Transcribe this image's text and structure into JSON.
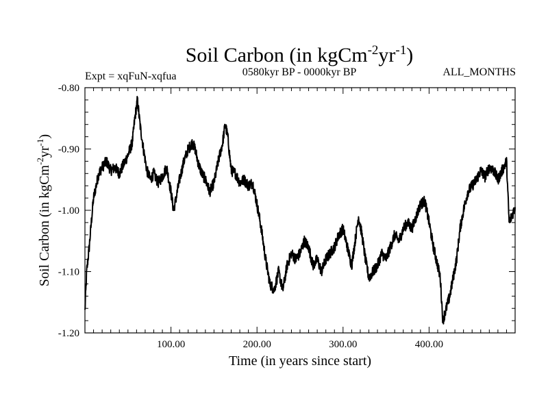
{
  "chart_data": {
    "type": "line",
    "title": "Soil Carbon (in kgCm",
    "title_sup1": "-2",
    "title_mid": "yr",
    "title_sup2": "-1",
    "title_end": ")",
    "subtitle_left": "Expt = xqFuN-xqfua",
    "subtitle_center": "0580kyr BP - 0000kyr BP",
    "subtitle_right": "ALL_MONTHS",
    "xlabel": "Time (in years since start)",
    "ylabel": "Soil Carbon (in kgCm",
    "ylabel_sup1": "-2",
    "ylabel_mid": "yr",
    "ylabel_sup2": "-1",
    "ylabel_end": ")",
    "xlim": [
      0,
      500
    ],
    "ylim": [
      -1.2,
      -0.8
    ],
    "x_ticks": [
      100,
      200,
      300,
      400
    ],
    "x_tick_labels": [
      "100.00",
      "200.00",
      "300.00",
      "400.00"
    ],
    "y_ticks": [
      -0.8,
      -0.9,
      -1.0,
      -1.1,
      -1.2
    ],
    "y_tick_labels": [
      "-0.80",
      "-0.90",
      "-1.00",
      "-1.10",
      "-1.20"
    ],
    "line_color": "#000000",
    "series": [
      {
        "name": "Soil Carbon",
        "x": [
          0,
          2,
          5,
          8,
          10,
          13,
          16,
          20,
          25,
          30,
          35,
          40,
          45,
          50,
          55,
          58,
          61,
          64,
          68,
          72,
          76,
          80,
          85,
          90,
          95,
          100,
          103,
          106,
          110,
          115,
          120,
          125,
          128,
          132,
          136,
          140,
          145,
          150,
          155,
          160,
          163,
          166,
          170,
          175,
          180,
          185,
          190,
          195,
          200,
          205,
          210,
          215,
          220,
          225,
          230,
          235,
          240,
          245,
          250,
          255,
          260,
          265,
          270,
          275,
          280,
          285,
          290,
          295,
          300,
          305,
          310,
          315,
          318,
          322,
          326,
          330,
          335,
          340,
          345,
          350,
          355,
          360,
          365,
          370,
          375,
          380,
          385,
          390,
          395,
          400,
          405,
          410,
          413,
          416,
          420,
          424,
          428,
          432,
          436,
          440,
          445,
          450,
          455,
          460,
          465,
          470,
          475,
          480,
          485,
          490,
          493,
          496,
          500
        ],
        "y": [
          -1.165,
          -1.1,
          -1.06,
          -1.01,
          -0.98,
          -0.96,
          -0.94,
          -0.93,
          -0.92,
          -0.935,
          -0.93,
          -0.94,
          -0.925,
          -0.91,
          -0.89,
          -0.85,
          -0.82,
          -0.86,
          -0.9,
          -0.935,
          -0.95,
          -0.94,
          -0.955,
          -0.945,
          -0.93,
          -0.97,
          -1.0,
          -0.98,
          -0.95,
          -0.92,
          -0.9,
          -0.89,
          -0.9,
          -0.925,
          -0.94,
          -0.95,
          -0.97,
          -0.955,
          -0.92,
          -0.89,
          -0.86,
          -0.88,
          -0.935,
          -0.94,
          -0.955,
          -0.95,
          -0.96,
          -0.955,
          -0.99,
          -1.03,
          -1.08,
          -1.12,
          -1.13,
          -1.1,
          -1.13,
          -1.09,
          -1.07,
          -1.08,
          -1.07,
          -1.05,
          -1.06,
          -1.09,
          -1.08,
          -1.1,
          -1.08,
          -1.07,
          -1.06,
          -1.04,
          -1.03,
          -1.06,
          -1.09,
          -1.04,
          -1.01,
          -1.04,
          -1.08,
          -1.11,
          -1.1,
          -1.09,
          -1.07,
          -1.08,
          -1.06,
          -1.04,
          -1.05,
          -1.03,
          -1.02,
          -1.03,
          -1.01,
          -0.99,
          -0.985,
          -1.02,
          -1.06,
          -1.09,
          -1.11,
          -1.18,
          -1.16,
          -1.14,
          -1.11,
          -1.08,
          -1.03,
          -1.0,
          -0.97,
          -0.96,
          -0.95,
          -0.935,
          -0.945,
          -0.93,
          -0.935,
          -0.95,
          -0.935,
          -0.92,
          -1.02,
          -1.01,
          -0.995
        ]
      }
    ]
  }
}
